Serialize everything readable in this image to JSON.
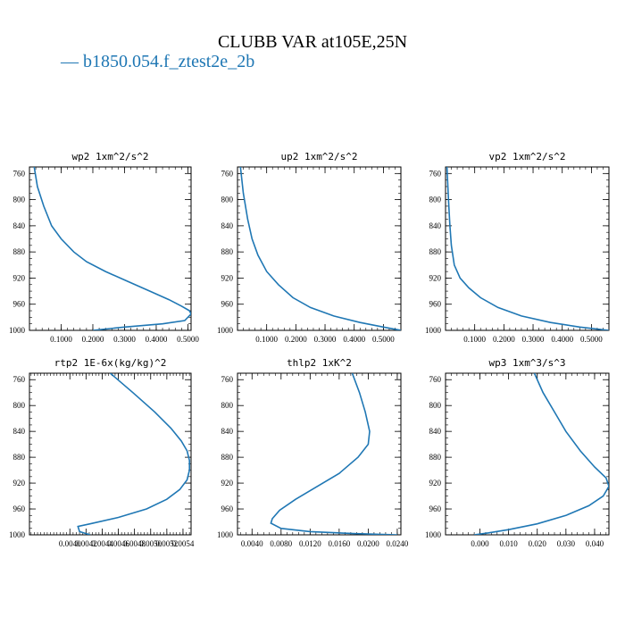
{
  "title": "CLUBB VAR at105E,25N",
  "legend": {
    "label": "b1850.054.f_ztest2e_2b",
    "color": "#1f77b4"
  },
  "chart_data": [
    {
      "type": "line",
      "title": "wp2  1xm^2/s^2",
      "xlim": [
        0,
        0.51
      ],
      "ylim": [
        1000,
        750
      ],
      "y_inverted": true,
      "xticks": [
        0.1,
        0.2,
        0.3,
        0.4,
        0.5
      ],
      "xtick_labels": [
        "0.1000",
        "0.2000",
        "0.3000",
        "0.4000",
        "0.5000"
      ],
      "yticks": [
        760,
        800,
        840,
        880,
        920,
        960,
        1000
      ],
      "ytick_labels": [
        "760",
        "800",
        "840",
        "880",
        "920",
        "960",
        "1000"
      ],
      "series": [
        {
          "color": "#1f77b4",
          "x": [
            0.015,
            0.025,
            0.045,
            0.07,
            0.1,
            0.14,
            0.18,
            0.24,
            0.31,
            0.38,
            0.44,
            0.48,
            0.505,
            0.51,
            0.49,
            0.42,
            0.3,
            0.2
          ],
          "y": [
            750,
            780,
            810,
            840,
            860,
            880,
            895,
            910,
            925,
            940,
            953,
            963,
            970,
            975,
            985,
            990,
            995,
            1000
          ]
        }
      ]
    },
    {
      "type": "line",
      "title": "up2  1xm^2/s^2",
      "xlim": [
        0,
        0.56
      ],
      "ylim": [
        1000,
        750
      ],
      "y_inverted": true,
      "xticks": [
        0.1,
        0.2,
        0.3,
        0.4,
        0.5
      ],
      "xtick_labels": [
        "0.1000",
        "0.2000",
        "0.3000",
        "0.4000",
        "0.5000"
      ],
      "yticks": [
        760,
        800,
        840,
        880,
        920,
        960,
        1000
      ],
      "ytick_labels": [
        "760",
        "800",
        "840",
        "880",
        "920",
        "960",
        "1000"
      ],
      "series": [
        {
          "color": "#1f77b4",
          "x": [
            0.01,
            0.02,
            0.035,
            0.05,
            0.07,
            0.1,
            0.14,
            0.19,
            0.25,
            0.33,
            0.42,
            0.5,
            0.56
          ],
          "y": [
            750,
            790,
            830,
            860,
            885,
            910,
            930,
            950,
            965,
            978,
            988,
            995,
            1000
          ]
        }
      ]
    },
    {
      "type": "line",
      "title": "vp2  1xm^2/s^2",
      "xlim": [
        0,
        0.56
      ],
      "ylim": [
        1000,
        750
      ],
      "y_inverted": true,
      "xticks": [
        0.1,
        0.2,
        0.3,
        0.4,
        0.5
      ],
      "xtick_labels": [
        "0.1000",
        "0.2000",
        "0.3000",
        "0.4000",
        "0.5000"
      ],
      "yticks": [
        760,
        800,
        840,
        880,
        920,
        960,
        1000
      ],
      "ytick_labels": [
        "760",
        "800",
        "840",
        "880",
        "920",
        "960",
        "1000"
      ],
      "series": [
        {
          "color": "#1f77b4",
          "x": [
            0.005,
            0.01,
            0.015,
            0.02,
            0.03,
            0.05,
            0.08,
            0.12,
            0.18,
            0.26,
            0.36,
            0.46,
            0.56
          ],
          "y": [
            750,
            800,
            840,
            870,
            900,
            920,
            935,
            950,
            965,
            978,
            988,
            995,
            1000
          ]
        }
      ]
    },
    {
      "type": "line",
      "title": "rtp2  1E-6x(kg/kg)^2",
      "xlim": [
        0.0035,
        0.0055
      ],
      "ylim": [
        1000,
        750
      ],
      "y_inverted": true,
      "xticks": [
        0.004,
        0.0042,
        0.0044,
        0.0046,
        0.0048,
        0.005,
        0.0052,
        0.0054
      ],
      "xtick_labels": [
        "0.0040",
        "0.0042",
        "0.0044",
        "0.0046",
        "0.0048",
        "0.0050",
        "0.0052",
        "0.0054"
      ],
      "yticks": [
        760,
        800,
        840,
        880,
        920,
        960,
        1000
      ],
      "ytick_labels": [
        "760",
        "800",
        "840",
        "880",
        "920",
        "960",
        "1000"
      ],
      "series": [
        {
          "color": "#1f77b4",
          "x": [
            0.0045,
            0.00478,
            0.00505,
            0.00525,
            0.00538,
            0.00545,
            0.00548,
            0.00548,
            0.00545,
            0.00536,
            0.0052,
            0.00495,
            0.0046,
            0.00425,
            0.0041,
            0.00412,
            0.00425
          ],
          "y": [
            750,
            780,
            810,
            835,
            855,
            870,
            885,
            900,
            915,
            930,
            945,
            960,
            973,
            983,
            987,
            995,
            1000
          ]
        }
      ]
    },
    {
      "type": "line",
      "title": "thlp2  1xK^2",
      "xlim": [
        0.002,
        0.0245
      ],
      "ylim": [
        1000,
        750
      ],
      "y_inverted": true,
      "xticks": [
        0.004,
        0.008,
        0.012,
        0.016,
        0.02,
        0.024
      ],
      "xtick_labels": [
        "0.0040",
        "0.0080",
        "0.0120",
        "0.0160",
        "0.0200",
        "0.0240"
      ],
      "yticks": [
        760,
        800,
        840,
        880,
        920,
        960,
        1000
      ],
      "ytick_labels": [
        "760",
        "800",
        "840",
        "880",
        "920",
        "960",
        "1000"
      ],
      "series": [
        {
          "color": "#1f77b4",
          "x": [
            0.0178,
            0.0188,
            0.0196,
            0.0202,
            0.02,
            0.0186,
            0.016,
            0.013,
            0.01,
            0.0078,
            0.0068,
            0.0066,
            0.008,
            0.012,
            0.018,
            0.024
          ],
          "y": [
            750,
            780,
            810,
            840,
            860,
            880,
            905,
            925,
            945,
            962,
            975,
            982,
            990,
            995,
            998,
            1000
          ]
        }
      ]
    },
    {
      "type": "line",
      "title": "wp3  1xm^3/s^3",
      "xlim": [
        -0.012,
        0.045
      ],
      "ylim": [
        1000,
        750
      ],
      "y_inverted": true,
      "xticks": [
        0,
        0.01,
        0.02,
        0.03,
        0.04
      ],
      "xtick_labels": [
        "0.000",
        "0.010",
        "0.020",
        "0.030",
        "0.040"
      ],
      "yticks": [
        760,
        800,
        840,
        880,
        920,
        960,
        1000
      ],
      "ytick_labels": [
        "760",
        "800",
        "840",
        "880",
        "920",
        "960",
        "1000"
      ],
      "series": [
        {
          "color": "#1f77b4",
          "x": [
            0.019,
            0.022,
            0.026,
            0.03,
            0.035,
            0.04,
            0.044,
            0.045,
            0.043,
            0.038,
            0.03,
            0.02,
            0.01,
            0.003,
            -0.002
          ],
          "y": [
            750,
            780,
            810,
            840,
            870,
            895,
            912,
            925,
            940,
            955,
            970,
            983,
            992,
            997,
            1000
          ]
        }
      ]
    }
  ]
}
